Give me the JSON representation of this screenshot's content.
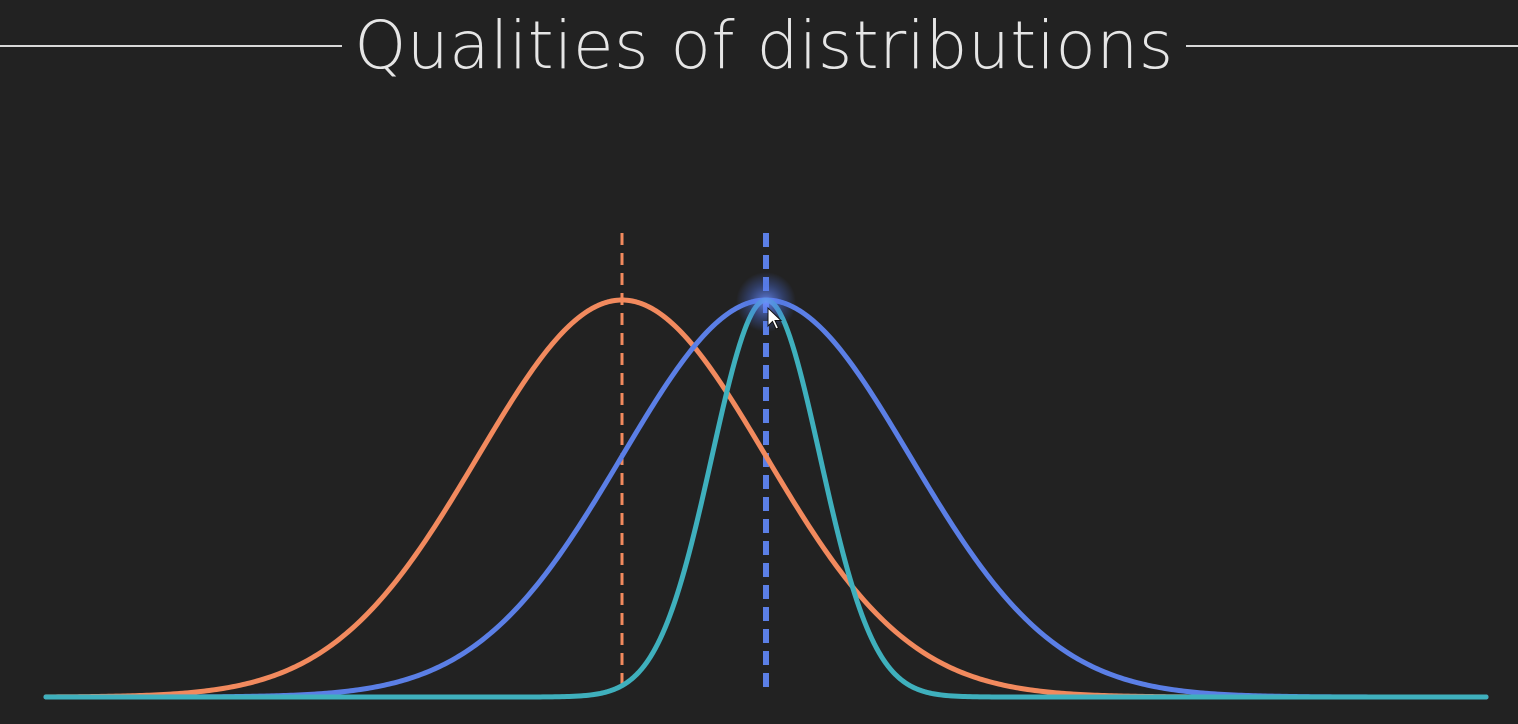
{
  "title": "Qualities of distributions",
  "chart_data": {
    "type": "line",
    "x_range": [
      -6,
      6
    ],
    "y_range": [
      0,
      1
    ],
    "grid": false,
    "axes_visible": false,
    "series": [
      {
        "color": "#f28a5e",
        "mean": -1.2,
        "sd": 1.2,
        "peak": 1.0
      },
      {
        "color": "#5b7fe6",
        "mean": 0.0,
        "sd": 1.2,
        "peak": 1.0
      },
      {
        "color": "#3fb0bd",
        "mean": 0.0,
        "sd": 0.45,
        "peak": 1.0
      }
    ],
    "mean_markers": [
      {
        "x": -1.2,
        "color": "#f28a5e",
        "style": "dashed"
      },
      {
        "x": 0.0,
        "color": "#5b7fe6",
        "style": "dashed"
      }
    ]
  },
  "cursor": {
    "icon": "mouse-pointer-icon"
  }
}
